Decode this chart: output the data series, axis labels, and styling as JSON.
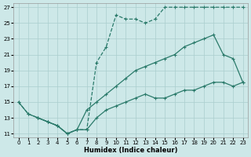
{
  "xlabel": "Humidex (Indice chaleur)",
  "xlim": [
    -0.5,
    23.5
  ],
  "ylim": [
    10.5,
    27.5
  ],
  "xticks": [
    0,
    1,
    2,
    3,
    4,
    5,
    6,
    7,
    8,
    9,
    10,
    11,
    12,
    13,
    14,
    15,
    16,
    17,
    18,
    19,
    20,
    21,
    22,
    23
  ],
  "yticks": [
    11,
    13,
    15,
    17,
    19,
    21,
    23,
    25,
    27
  ],
  "line_color": "#2a7a6a",
  "bg_color": "#cde8e8",
  "grid_color": "#aacece",
  "line1_x": [
    0,
    1,
    2,
    3,
    4,
    5,
    6,
    7,
    8,
    9,
    10,
    11,
    12,
    13,
    14,
    15,
    16,
    17,
    18,
    19,
    20,
    21,
    22,
    23
  ],
  "line1_y": [
    15,
    13.5,
    13,
    12.5,
    12,
    11,
    11.5,
    11.5,
    20,
    22,
    26,
    25.5,
    25.5,
    25,
    25.5,
    27,
    27,
    27,
    27,
    27,
    27,
    27,
    27,
    27
  ],
  "line2_x": [
    0,
    1,
    2,
    3,
    4,
    5,
    6,
    7,
    8,
    9,
    10,
    11,
    12,
    13,
    14,
    15,
    16,
    17,
    18,
    19,
    20,
    21,
    22,
    23
  ],
  "line2_y": [
    15,
    13.5,
    13,
    12.5,
    12,
    11,
    11.5,
    14,
    15,
    16,
    17,
    18,
    19,
    19.5,
    20,
    20.5,
    21,
    22,
    22.5,
    23,
    23.5,
    21,
    20.5,
    17.5
  ],
  "line3_x": [
    2,
    3,
    4,
    5,
    6,
    7,
    8,
    9,
    10,
    11,
    12,
    13,
    14,
    15,
    16,
    17,
    18,
    19,
    20,
    21,
    22,
    23
  ],
  "line3_y": [
    13,
    12.5,
    12,
    11,
    11.5,
    11.5,
    13,
    14,
    14.5,
    15,
    15.5,
    16,
    15.5,
    15.5,
    16,
    16.5,
    16.5,
    17,
    17.5,
    17.5,
    17,
    17.5
  ]
}
